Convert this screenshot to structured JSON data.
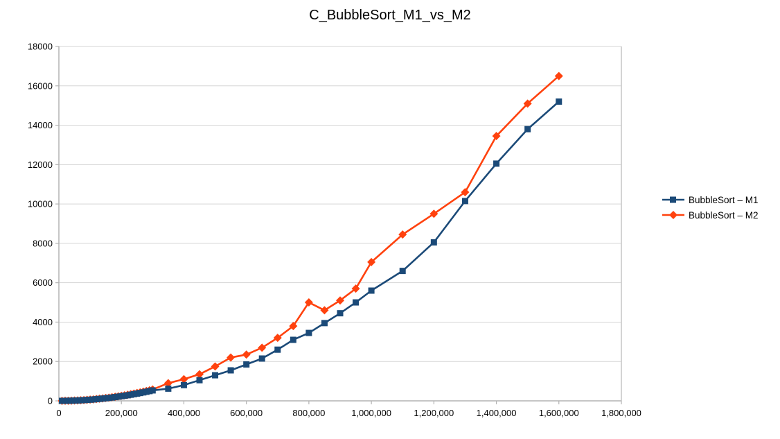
{
  "chart": {
    "title": "C_BubbleSort_M1_vs_M2",
    "background": "#ffffff",
    "axis_color": "#b3b3b3",
    "grid_color": "#d5d5d5",
    "border_color": "#c6c6c6",
    "text_color": "#000000"
  },
  "chart_data": {
    "type": "line",
    "title": "C_BubbleSort_M1_vs_M2",
    "xlabel": "",
    "ylabel": "",
    "xlim": [
      0,
      1800000
    ],
    "ylim": [
      0,
      18000
    ],
    "grid": "horizontal-only",
    "legend_position": "right",
    "x_ticks": [
      0,
      200000,
      400000,
      600000,
      800000,
      1000000,
      1200000,
      1400000,
      1600000,
      1800000
    ],
    "x_tick_labels": [
      "0",
      "200,000",
      "400,000",
      "600,000",
      "800,000",
      "1,000,000",
      "1,200,000",
      "1,400,000",
      "1,600,000",
      "1,800,000"
    ],
    "y_ticks": [
      0,
      2000,
      4000,
      6000,
      8000,
      10000,
      12000,
      14000,
      16000,
      18000
    ],
    "y_tick_labels": [
      "0",
      "2000",
      "4000",
      "6000",
      "8000",
      "10000",
      "12000",
      "14000",
      "16000",
      "18000"
    ],
    "x": [
      10000,
      20000,
      30000,
      40000,
      50000,
      60000,
      70000,
      80000,
      90000,
      100000,
      110000,
      120000,
      130000,
      140000,
      150000,
      160000,
      170000,
      180000,
      190000,
      200000,
      210000,
      220000,
      230000,
      240000,
      250000,
      260000,
      270000,
      280000,
      290000,
      300000,
      350000,
      400000,
      450000,
      500000,
      550000,
      600000,
      650000,
      700000,
      750000,
      800000,
      850000,
      900000,
      950000,
      1000000,
      1100000,
      1200000,
      1300000,
      1400000,
      1500000,
      1600000
    ],
    "series": [
      {
        "name": "BubbleSort – M1",
        "color": "#1b4a78",
        "marker": "square",
        "values": [
          1,
          2,
          5,
          9,
          15,
          21,
          29,
          38,
          48,
          59,
          71,
          85,
          100,
          116,
          133,
          151,
          170,
          191,
          213,
          236,
          260,
          285,
          312,
          340,
          369,
          399,
          430,
          462,
          496,
          531,
          620,
          800,
          1050,
          1300,
          1550,
          1850,
          2150,
          2600,
          3100,
          3450,
          3950,
          4450,
          5000,
          5600,
          6600,
          8050,
          10150,
          12050,
          13800,
          15200
        ]
      },
      {
        "name": "BubbleSort – M2",
        "color": "#ff420e",
        "marker": "diamond",
        "values": [
          1,
          3,
          6,
          10,
          16,
          23,
          31,
          41,
          52,
          64,
          77,
          92,
          108,
          125,
          144,
          164,
          185,
          207,
          231,
          256,
          282,
          310,
          339,
          369,
          400,
          433,
          467,
          502,
          539,
          576,
          900,
          1100,
          1350,
          1750,
          2200,
          2350,
          2700,
          3200,
          3800,
          5000,
          4600,
          5100,
          5700,
          7050,
          8450,
          9500,
          10600,
          13450,
          15100,
          16500
        ]
      }
    ]
  }
}
